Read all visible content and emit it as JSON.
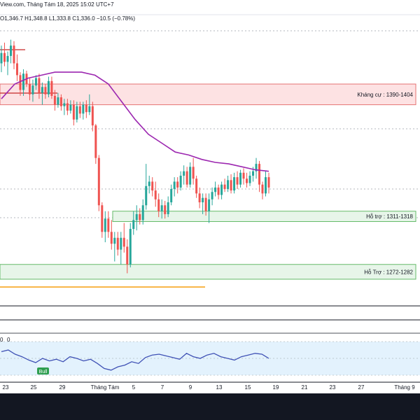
{
  "header": {
    "source_fragment": "View.com, Tháng Tám 18, 2025 15:02 UTC+7",
    "ohlc": "O1,346.7 H1,348.8 L1,333.8 C1,336.0 −10.5 (−0.78%)"
  },
  "zones": [
    {
      "label": "Kháng cự : 1390-1404",
      "kind": "resistance",
      "low": 1390,
      "high": 1404
    },
    {
      "label": "Hỗ trợ : 1311-1318",
      "kind": "support",
      "low": 1311,
      "high": 1318
    },
    {
      "label": "Hỗ Trợ : 1272-1282",
      "kind": "support",
      "low": 1272,
      "high": 1282
    }
  ],
  "rsi_panel": {
    "header_values": [
      "0",
      "0"
    ],
    "bull_tag": "Bull"
  },
  "colors": {
    "up": "#26a69a",
    "down": "#ef5350",
    "ma": "#9c27b0",
    "resistance_fill": "#fde2e3",
    "resistance_border": "#e57373",
    "support_fill": "#e7f5e9",
    "support_border": "#66bb6a",
    "rsi_line": "#3f51b5",
    "rsi_band": "#e3f2fd",
    "bull_tag": "#2e9e4f",
    "low_line": "#f59d0d"
  },
  "chart_data": {
    "type": "candlestick",
    "title": "",
    "ylim": [
      1262,
      1440
    ],
    "x_ticks": [
      "23",
      "25",
      "29",
      "Tháng Tám",
      "5",
      "7",
      "9",
      "13",
      "15",
      "19",
      "21",
      "23",
      "27",
      "Tháng 9"
    ],
    "candles": [
      {
        "o": 1418,
        "h": 1430,
        "l": 1412,
        "c": 1425
      },
      {
        "o": 1425,
        "h": 1432,
        "l": 1416,
        "c": 1419
      },
      {
        "o": 1419,
        "h": 1426,
        "l": 1410,
        "c": 1423
      },
      {
        "o": 1423,
        "h": 1434,
        "l": 1418,
        "c": 1430
      },
      {
        "o": 1430,
        "h": 1433,
        "l": 1414,
        "c": 1418
      },
      {
        "o": 1418,
        "h": 1424,
        "l": 1406,
        "c": 1410
      },
      {
        "o": 1410,
        "h": 1412,
        "l": 1396,
        "c": 1400
      },
      {
        "o": 1400,
        "h": 1414,
        "l": 1396,
        "c": 1411
      },
      {
        "o": 1411,
        "h": 1413,
        "l": 1402,
        "c": 1404
      },
      {
        "o": 1404,
        "h": 1408,
        "l": 1393,
        "c": 1397
      },
      {
        "o": 1397,
        "h": 1407,
        "l": 1392,
        "c": 1403
      },
      {
        "o": 1403,
        "h": 1410,
        "l": 1400,
        "c": 1408
      },
      {
        "o": 1408,
        "h": 1411,
        "l": 1394,
        "c": 1398
      },
      {
        "o": 1398,
        "h": 1405,
        "l": 1390,
        "c": 1402
      },
      {
        "o": 1402,
        "h": 1404,
        "l": 1394,
        "c": 1397
      },
      {
        "o": 1397,
        "h": 1409,
        "l": 1395,
        "c": 1406
      },
      {
        "o": 1406,
        "h": 1409,
        "l": 1394,
        "c": 1396
      },
      {
        "o": 1396,
        "h": 1400,
        "l": 1386,
        "c": 1390
      },
      {
        "o": 1390,
        "h": 1398,
        "l": 1388,
        "c": 1395
      },
      {
        "o": 1395,
        "h": 1397,
        "l": 1386,
        "c": 1389
      },
      {
        "o": 1389,
        "h": 1394,
        "l": 1383,
        "c": 1391
      },
      {
        "o": 1391,
        "h": 1394,
        "l": 1383,
        "c": 1386
      },
      {
        "o": 1386,
        "h": 1393,
        "l": 1384,
        "c": 1390
      },
      {
        "o": 1390,
        "h": 1393,
        "l": 1376,
        "c": 1380
      },
      {
        "o": 1380,
        "h": 1392,
        "l": 1378,
        "c": 1389
      },
      {
        "o": 1389,
        "h": 1392,
        "l": 1381,
        "c": 1384
      },
      {
        "o": 1384,
        "h": 1392,
        "l": 1380,
        "c": 1390
      },
      {
        "o": 1390,
        "h": 1393,
        "l": 1381,
        "c": 1385
      },
      {
        "o": 1385,
        "h": 1397,
        "l": 1383,
        "c": 1389
      },
      {
        "o": 1389,
        "h": 1392,
        "l": 1372,
        "c": 1376
      },
      {
        "o": 1376,
        "h": 1377,
        "l": 1350,
        "c": 1354
      },
      {
        "o": 1354,
        "h": 1356,
        "l": 1318,
        "c": 1322
      },
      {
        "o": 1322,
        "h": 1324,
        "l": 1300,
        "c": 1304
      },
      {
        "o": 1304,
        "h": 1318,
        "l": 1297,
        "c": 1313
      },
      {
        "o": 1313,
        "h": 1318,
        "l": 1300,
        "c": 1304
      },
      {
        "o": 1304,
        "h": 1312,
        "l": 1292,
        "c": 1296
      },
      {
        "o": 1296,
        "h": 1304,
        "l": 1284,
        "c": 1300
      },
      {
        "o": 1300,
        "h": 1304,
        "l": 1288,
        "c": 1292
      },
      {
        "o": 1292,
        "h": 1304,
        "l": 1282,
        "c": 1300
      },
      {
        "o": 1300,
        "h": 1310,
        "l": 1290,
        "c": 1294
      },
      {
        "o": 1294,
        "h": 1299,
        "l": 1276,
        "c": 1282
      },
      {
        "o": 1282,
        "h": 1310,
        "l": 1280,
        "c": 1306
      },
      {
        "o": 1306,
        "h": 1318,
        "l": 1302,
        "c": 1312
      },
      {
        "o": 1312,
        "h": 1322,
        "l": 1305,
        "c": 1316
      },
      {
        "o": 1316,
        "h": 1320,
        "l": 1309,
        "c": 1312
      },
      {
        "o": 1312,
        "h": 1326,
        "l": 1309,
        "c": 1322
      },
      {
        "o": 1322,
        "h": 1350,
        "l": 1319,
        "c": 1335
      },
      {
        "o": 1335,
        "h": 1342,
        "l": 1330,
        "c": 1338
      },
      {
        "o": 1338,
        "h": 1341,
        "l": 1328,
        "c": 1332
      },
      {
        "o": 1332,
        "h": 1338,
        "l": 1321,
        "c": 1326
      },
      {
        "o": 1326,
        "h": 1330,
        "l": 1314,
        "c": 1318
      },
      {
        "o": 1318,
        "h": 1326,
        "l": 1313,
        "c": 1322
      },
      {
        "o": 1322,
        "h": 1325,
        "l": 1313,
        "c": 1316
      },
      {
        "o": 1316,
        "h": 1328,
        "l": 1314,
        "c": 1324
      },
      {
        "o": 1324,
        "h": 1336,
        "l": 1322,
        "c": 1333
      },
      {
        "o": 1333,
        "h": 1341,
        "l": 1328,
        "c": 1338
      },
      {
        "o": 1338,
        "h": 1341,
        "l": 1330,
        "c": 1334
      },
      {
        "o": 1334,
        "h": 1345,
        "l": 1332,
        "c": 1342
      },
      {
        "o": 1342,
        "h": 1349,
        "l": 1336,
        "c": 1345
      },
      {
        "o": 1345,
        "h": 1348,
        "l": 1334,
        "c": 1336
      },
      {
        "o": 1336,
        "h": 1351,
        "l": 1334,
        "c": 1348
      },
      {
        "o": 1348,
        "h": 1354,
        "l": 1336,
        "c": 1340
      },
      {
        "o": 1340,
        "h": 1342,
        "l": 1327,
        "c": 1330
      },
      {
        "o": 1330,
        "h": 1334,
        "l": 1320,
        "c": 1324
      },
      {
        "o": 1324,
        "h": 1330,
        "l": 1316,
        "c": 1327
      },
      {
        "o": 1327,
        "h": 1330,
        "l": 1315,
        "c": 1318
      },
      {
        "o": 1318,
        "h": 1330,
        "l": 1310,
        "c": 1326
      },
      {
        "o": 1326,
        "h": 1334,
        "l": 1322,
        "c": 1331
      },
      {
        "o": 1331,
        "h": 1338,
        "l": 1328,
        "c": 1334
      },
      {
        "o": 1334,
        "h": 1336,
        "l": 1326,
        "c": 1329
      },
      {
        "o": 1329,
        "h": 1338,
        "l": 1326,
        "c": 1336
      },
      {
        "o": 1336,
        "h": 1340,
        "l": 1331,
        "c": 1333
      },
      {
        "o": 1333,
        "h": 1342,
        "l": 1331,
        "c": 1339
      },
      {
        "o": 1339,
        "h": 1343,
        "l": 1330,
        "c": 1332
      },
      {
        "o": 1332,
        "h": 1344,
        "l": 1330,
        "c": 1341
      },
      {
        "o": 1341,
        "h": 1345,
        "l": 1333,
        "c": 1336
      },
      {
        "o": 1336,
        "h": 1346,
        "l": 1334,
        "c": 1344
      },
      {
        "o": 1344,
        "h": 1347,
        "l": 1336,
        "c": 1340
      },
      {
        "o": 1340,
        "h": 1344,
        "l": 1334,
        "c": 1337
      },
      {
        "o": 1337,
        "h": 1345,
        "l": 1335,
        "c": 1342
      },
      {
        "o": 1342,
        "h": 1348,
        "l": 1338,
        "c": 1345
      },
      {
        "o": 1345,
        "h": 1354,
        "l": 1340,
        "c": 1350
      },
      {
        "o": 1350,
        "h": 1352,
        "l": 1331,
        "c": 1336
      },
      {
        "o": 1336,
        "h": 1338,
        "l": 1326,
        "c": 1330
      },
      {
        "o": 1330,
        "h": 1345,
        "l": 1328,
        "c": 1341
      },
      {
        "o": 1341,
        "h": 1344,
        "l": 1330,
        "c": 1334
      }
    ],
    "moving_average": [
      1394,
      1404,
      1408,
      1410,
      1412,
      1412,
      1412,
      1410,
      1404,
      1392,
      1380,
      1370,
      1364,
      1358,
      1356,
      1353,
      1351,
      1350,
      1348,
      1346,
      1345
    ],
    "rsi": [
      58,
      60,
      55,
      52,
      48,
      45,
      50,
      47,
      49,
      46,
      52,
      50,
      47,
      49,
      44,
      38,
      36,
      40,
      42,
      46,
      44,
      51,
      54,
      55,
      53,
      51,
      49,
      56,
      52,
      50,
      54,
      56,
      52,
      50,
      48,
      52,
      54,
      56,
      55,
      50
    ]
  }
}
